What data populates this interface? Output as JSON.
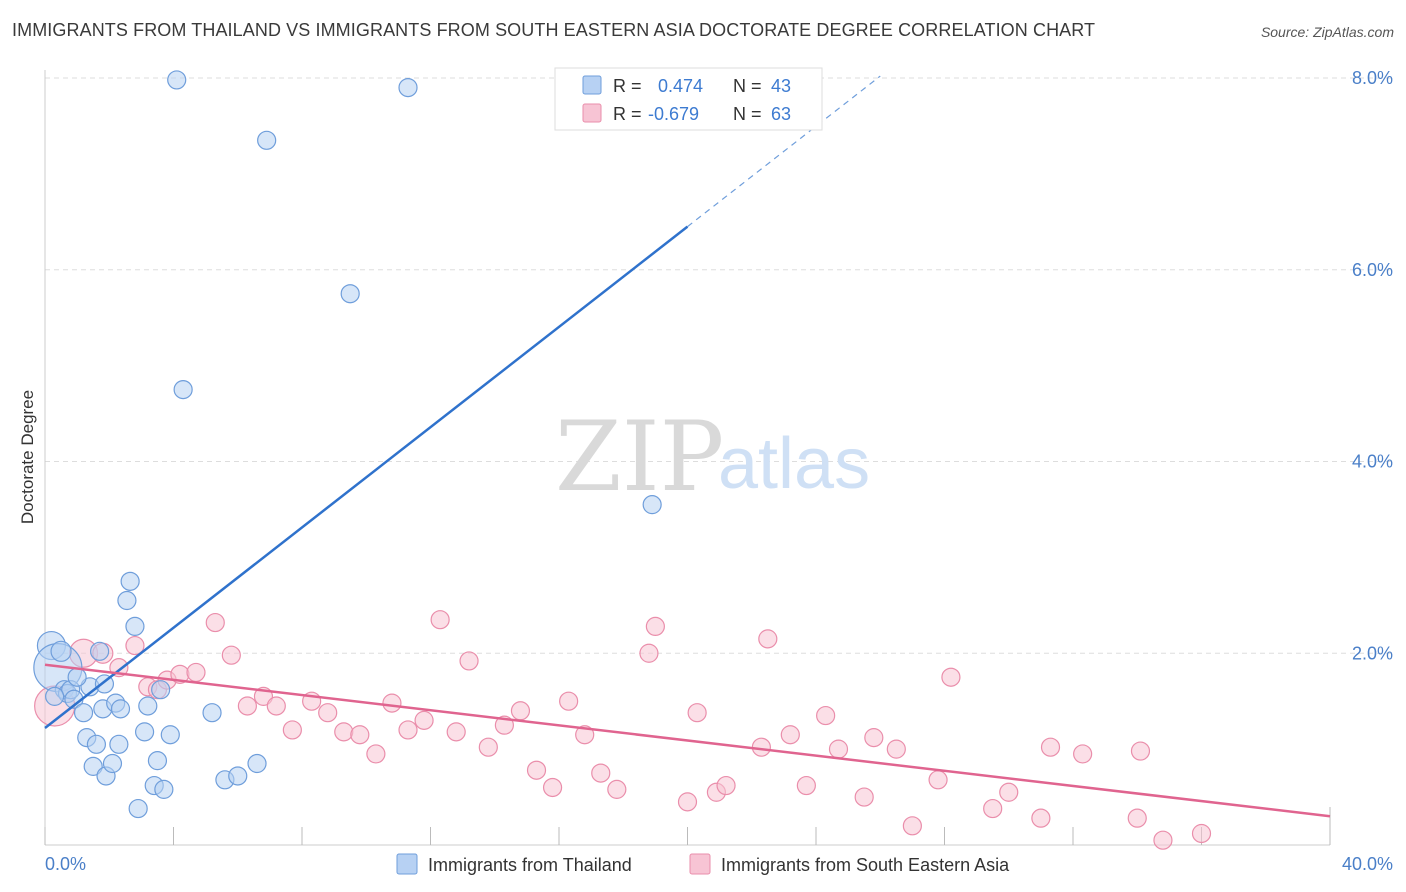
{
  "header": {
    "title": "IMMIGRANTS FROM THAILAND VS IMMIGRANTS FROM SOUTH EASTERN ASIA DOCTORATE DEGREE CORRELATION CHART",
    "source": "Source: ZipAtlas.com"
  },
  "watermark": {
    "zip": "ZIP",
    "atlas": "atlas"
  },
  "legend": {
    "r_label": "R =",
    "n_label": "N =",
    "thailand": {
      "r": "0.474",
      "n": "43"
    },
    "sea": {
      "r": "-0.679",
      "n": "63"
    }
  },
  "bottom_legend": {
    "thailand": "Immigrants from Thailand",
    "sea": "Immigrants from South Eastern Asia"
  },
  "colors": {
    "blue_fill": "#b7d1f3",
    "blue_stroke": "#6f9edb",
    "blue_line": "#2f72cc",
    "pink_fill": "#f7c4d4",
    "pink_stroke": "#ea8eab",
    "pink_line": "#e0648f",
    "grid": "#dddddd",
    "axis_text": "#4a7fc8"
  },
  "chart_data": {
    "type": "scatter",
    "title": "IMMIGRANTS FROM THAILAND VS IMMIGRANTS FROM SOUTH EASTERN ASIA DOCTORATE DEGREE CORRELATION CHART",
    "xlabel": "",
    "ylabel": "Doctorate Degree",
    "xlim": [
      0,
      40
    ],
    "ylim": [
      0,
      8.0
    ],
    "x_tick_labels": [
      "0.0%",
      "40.0%"
    ],
    "y_tick_labels": [
      "2.0%",
      "4.0%",
      "6.0%",
      "8.0%"
    ],
    "y_ticks": [
      2,
      4,
      6,
      8
    ],
    "series": [
      {
        "name": "Immigrants from Thailand",
        "r": 0.474,
        "n": 43,
        "trend": {
          "x0": 0,
          "y0": 1.22,
          "x1": 20,
          "y1": 6.45,
          "dashed_to_x": 26,
          "dashed_to_y": 8.02
        },
        "points": [
          [
            0.2,
            2.08,
            14
          ],
          [
            0.4,
            1.85,
            24
          ],
          [
            0.5,
            2.02,
            10
          ],
          [
            0.6,
            1.62,
            9
          ],
          [
            0.7,
            1.58,
            9
          ],
          [
            0.8,
            1.62,
            9
          ],
          [
            0.9,
            1.52,
            9
          ],
          [
            1.2,
            1.38,
            9
          ],
          [
            1.3,
            1.12,
            9
          ],
          [
            1.4,
            1.65,
            9
          ],
          [
            1.5,
            0.82,
            9
          ],
          [
            1.6,
            1.05,
            9
          ],
          [
            1.7,
            2.02,
            9
          ],
          [
            1.8,
            1.42,
            9
          ],
          [
            1.85,
            1.68,
            9
          ],
          [
            1.9,
            0.72,
            9
          ],
          [
            2.1,
            0.85,
            9
          ],
          [
            2.2,
            1.48,
            9
          ],
          [
            2.3,
            1.05,
            9
          ],
          [
            2.35,
            1.42,
            9
          ],
          [
            2.55,
            2.55,
            9
          ],
          [
            2.65,
            2.75,
            9
          ],
          [
            2.8,
            2.28,
            9
          ],
          [
            2.9,
            0.38,
            9
          ],
          [
            3.1,
            1.18,
            9
          ],
          [
            3.2,
            1.45,
            9
          ],
          [
            3.4,
            0.62,
            9
          ],
          [
            3.5,
            0.88,
            9
          ],
          [
            3.6,
            1.62,
            9
          ],
          [
            3.7,
            0.58,
            9
          ],
          [
            3.9,
            1.15,
            9
          ],
          [
            4.1,
            7.98,
            9
          ],
          [
            4.3,
            4.75,
            9
          ],
          [
            5.2,
            1.38,
            9
          ],
          [
            5.6,
            0.68,
            9
          ],
          [
            6.0,
            0.72,
            9
          ],
          [
            6.6,
            0.85,
            9
          ],
          [
            6.9,
            7.35,
            9
          ],
          [
            9.5,
            5.75,
            9
          ],
          [
            11.3,
            7.9,
            9
          ],
          [
            18.9,
            3.55,
            9
          ],
          [
            0.3,
            1.55,
            9
          ],
          [
            1.0,
            1.75,
            9
          ]
        ]
      },
      {
        "name": "Immigrants from South Eastern Asia",
        "r": -0.679,
        "n": 63,
        "trend": {
          "x0": 0,
          "y0": 1.88,
          "x1": 40,
          "y1": 0.3
        },
        "points": [
          [
            0.3,
            1.45,
            20
          ],
          [
            1.2,
            2.0,
            14
          ],
          [
            1.8,
            2.0,
            10
          ],
          [
            2.3,
            1.85,
            9
          ],
          [
            2.8,
            2.08,
            9
          ],
          [
            3.2,
            1.65,
            9
          ],
          [
            3.5,
            1.62,
            9
          ],
          [
            3.8,
            1.72,
            9
          ],
          [
            4.2,
            1.78,
            9
          ],
          [
            4.7,
            1.8,
            9
          ],
          [
            5.3,
            2.32,
            9
          ],
          [
            5.8,
            1.98,
            9
          ],
          [
            6.3,
            1.45,
            9
          ],
          [
            6.8,
            1.55,
            9
          ],
          [
            7.2,
            1.45,
            9
          ],
          [
            7.7,
            1.2,
            9
          ],
          [
            8.3,
            1.5,
            9
          ],
          [
            8.8,
            1.38,
            9
          ],
          [
            9.3,
            1.18,
            9
          ],
          [
            9.8,
            1.15,
            9
          ],
          [
            10.3,
            0.95,
            9
          ],
          [
            10.8,
            1.48,
            9
          ],
          [
            11.3,
            1.2,
            9
          ],
          [
            11.8,
            1.3,
            9
          ],
          [
            12.3,
            2.35,
            9
          ],
          [
            12.8,
            1.18,
            9
          ],
          [
            13.2,
            1.92,
            9
          ],
          [
            13.8,
            1.02,
            9
          ],
          [
            14.3,
            1.25,
            9
          ],
          [
            14.8,
            1.4,
            9
          ],
          [
            15.3,
            0.78,
            9
          ],
          [
            15.8,
            0.6,
            9
          ],
          [
            16.3,
            1.5,
            9
          ],
          [
            16.8,
            1.15,
            9
          ],
          [
            17.3,
            0.75,
            9
          ],
          [
            17.8,
            0.58,
            9
          ],
          [
            18.8,
            2.0,
            9
          ],
          [
            19.0,
            2.28,
            9
          ],
          [
            20.0,
            0.45,
            9
          ],
          [
            20.3,
            1.38,
            9
          ],
          [
            20.9,
            0.55,
            9
          ],
          [
            21.2,
            0.62,
            9
          ],
          [
            22.3,
            1.02,
            9
          ],
          [
            22.5,
            2.15,
            9
          ],
          [
            23.2,
            1.15,
            9
          ],
          [
            23.7,
            0.62,
            9
          ],
          [
            24.3,
            1.35,
            9
          ],
          [
            24.7,
            1.0,
            9
          ],
          [
            25.5,
            0.5,
            9
          ],
          [
            25.8,
            1.12,
            9
          ],
          [
            26.5,
            1.0,
            9
          ],
          [
            27.0,
            0.2,
            9
          ],
          [
            27.8,
            0.68,
            9
          ],
          [
            28.2,
            1.75,
            9
          ],
          [
            29.5,
            0.38,
            9
          ],
          [
            30.0,
            0.55,
            9
          ],
          [
            31.0,
            0.28,
            9
          ],
          [
            31.3,
            1.02,
            9
          ],
          [
            32.3,
            0.95,
            9
          ],
          [
            34.0,
            0.28,
            9
          ],
          [
            34.1,
            0.98,
            9
          ],
          [
            34.8,
            0.05,
            9
          ],
          [
            36.0,
            0.12,
            9
          ]
        ]
      }
    ]
  }
}
